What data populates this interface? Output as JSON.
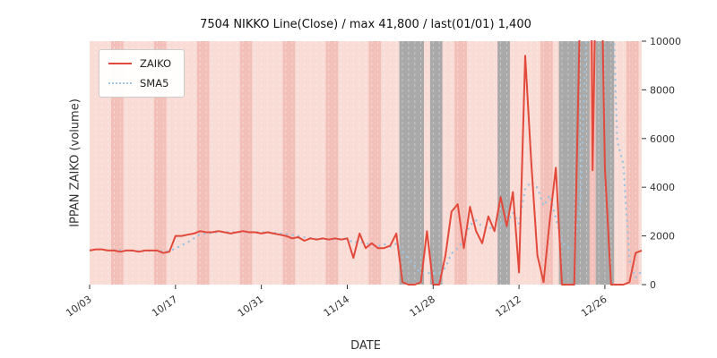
{
  "title": "7504 NIKKO Line(Close) / max 41,800 / last(01/01) 1,400",
  "axes": {
    "x_label": "DATE",
    "y_label": "IPPAN ZAIKO (volume)"
  },
  "legend": {
    "position": "upper left",
    "items": [
      {
        "label": "ZAIKO",
        "color": "#e2493b",
        "style": "solid"
      },
      {
        "label": "SMA5",
        "color": "#9fc3de",
        "style": "dotted"
      }
    ]
  },
  "style": {
    "plot_bg": "#f9dcd6",
    "weekend_band": "#f2c0b8",
    "closed_band": "#a9a9a9",
    "zaiko": "#e2493b",
    "sma5": "#9fc3de",
    "tick_color": "#333333"
  },
  "chart_data": {
    "type": "line",
    "title": "7504 NIKKO Line(Close) / max 41,800 / last(01/01) 1,400",
    "xlabel": "DATE",
    "ylabel": "IPPAN ZAIKO (volume)",
    "ylim": [
      0,
      10000
    ],
    "yticks": [
      0,
      2000,
      4000,
      6000,
      8000,
      10000
    ],
    "xtick_indices": [
      0,
      14,
      28,
      42,
      56,
      70,
      84
    ],
    "xtick_labels": [
      "10/03",
      "10/17",
      "10/31",
      "11/14",
      "11/28",
      "12/12",
      "12/26"
    ],
    "max_value": 41800,
    "last_value": 1400,
    "last_date": "01/01",
    "x": [
      "10/03",
      "10/04",
      "10/05",
      "10/06",
      "10/07",
      "10/08",
      "10/09",
      "10/10",
      "10/11",
      "10/12",
      "10/13",
      "10/14",
      "10/15",
      "10/16",
      "10/17",
      "10/18",
      "10/19",
      "10/20",
      "10/21",
      "10/22",
      "10/23",
      "10/24",
      "10/25",
      "10/26",
      "10/27",
      "10/28",
      "10/29",
      "10/30",
      "10/31",
      "11/01",
      "11/02",
      "11/03",
      "11/04",
      "11/05",
      "11/06",
      "11/07",
      "11/08",
      "11/09",
      "11/10",
      "11/11",
      "11/12",
      "11/13",
      "11/14",
      "11/15",
      "11/16",
      "11/17",
      "11/18",
      "11/19",
      "11/20",
      "11/21",
      "11/22",
      "11/23",
      "11/24",
      "11/25",
      "11/26",
      "11/27",
      "11/28",
      "11/29",
      "11/30",
      "12/01",
      "12/02",
      "12/03",
      "12/04",
      "12/05",
      "12/06",
      "12/07",
      "12/08",
      "12/09",
      "12/10",
      "12/11",
      "12/12",
      "12/13",
      "12/14",
      "12/15",
      "12/16",
      "12/17",
      "12/18",
      "12/19",
      "12/20",
      "12/21",
      "12/22",
      "12/23",
      "12/24",
      "12/25",
      "12/26",
      "12/27",
      "12/28",
      "12/29",
      "12/30",
      "12/31",
      "01/01"
    ],
    "series": [
      {
        "name": "ZAIKO",
        "values": [
          1400,
          1450,
          1450,
          1400,
          1400,
          1350,
          1400,
          1400,
          1350,
          1400,
          1400,
          1400,
          1300,
          1350,
          2000,
          2000,
          2050,
          2100,
          2200,
          2150,
          2150,
          2200,
          2150,
          2100,
          2150,
          2200,
          2150,
          2150,
          2100,
          2150,
          2100,
          2050,
          2000,
          1900,
          1950,
          1800,
          1900,
          1850,
          1900,
          1850,
          1900,
          1850,
          1900,
          1100,
          2100,
          1500,
          1700,
          1500,
          1500,
          1600,
          2100,
          100,
          0,
          0,
          100,
          2200,
          0,
          0,
          1200,
          3000,
          3300,
          1500,
          3200,
          2200,
          1700,
          2800,
          2200,
          3600,
          2400,
          3800,
          500,
          9400,
          5000,
          1200,
          100,
          2600,
          4800,
          0,
          0,
          0,
          12000,
          41800,
          4700,
          20000,
          4800,
          0,
          0,
          0,
          100,
          1300,
          1400
        ]
      },
      {
        "name": "SMA5",
        "derived": "rolling mean of ZAIKO",
        "window": 5
      }
    ],
    "layout": {
      "grid": "daily vertical dashed lines",
      "legend_position": "upper left",
      "y_axis_side": "right",
      "first_weekend_index": 4,
      "gray_ranges": [
        [
          51,
          54
        ],
        [
          56,
          57
        ],
        [
          67,
          68
        ],
        [
          77,
          81
        ],
        [
          83,
          85
        ]
      ]
    }
  }
}
